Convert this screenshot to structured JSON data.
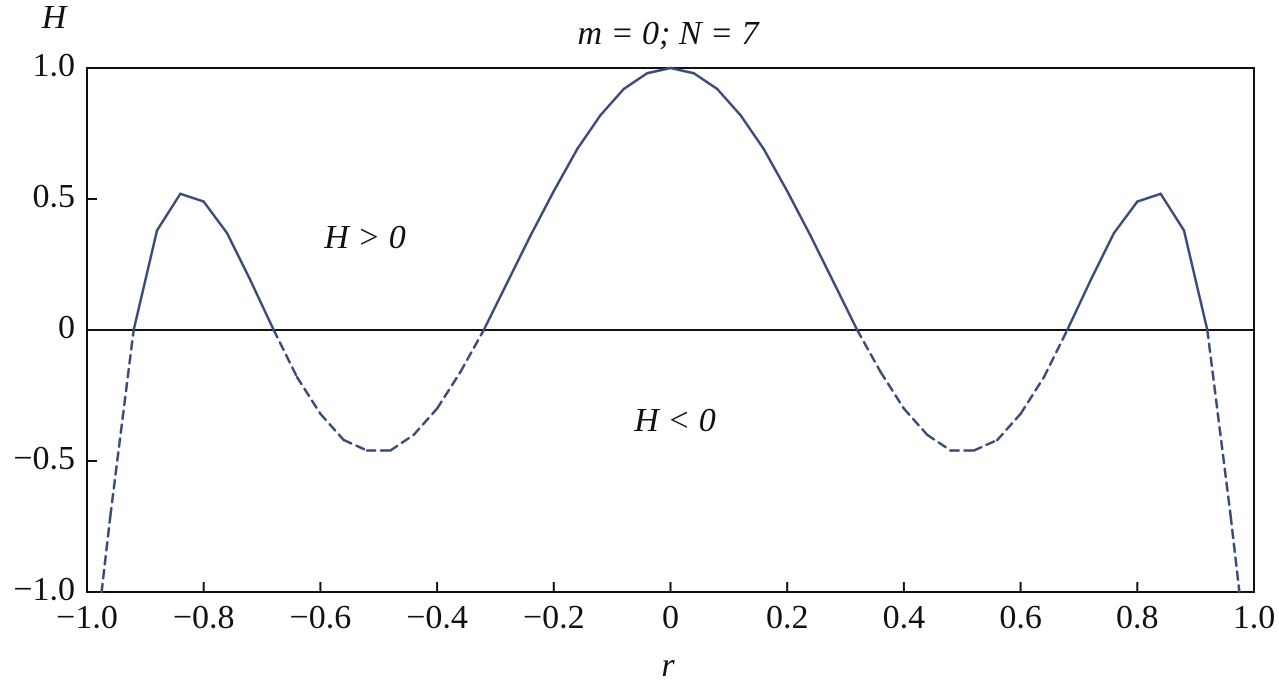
{
  "chart_data": {
    "type": "line",
    "title": "m = 0; N = 7",
    "x_label": "r",
    "y_label": "H",
    "annotations": [
      "H > 0",
      "H < 0"
    ],
    "x": [
      -0.975,
      -0.96,
      -0.92,
      -0.88,
      -0.84,
      -0.8,
      -0.76,
      -0.72,
      -0.68,
      -0.64,
      -0.6,
      -0.56,
      -0.52,
      -0.48,
      -0.44,
      -0.4,
      -0.36,
      -0.32,
      -0.28,
      -0.24,
      -0.2,
      -0.16,
      -0.12,
      -0.08,
      -0.04,
      0,
      0.04,
      0.08,
      0.12,
      0.16,
      0.2,
      0.24,
      0.28,
      0.32,
      0.36,
      0.4,
      0.44,
      0.48,
      0.52,
      0.56,
      0.6,
      0.64,
      0.68,
      0.72,
      0.76,
      0.8,
      0.84,
      0.88,
      0.92,
      0.96,
      0.975
    ],
    "series": [
      {
        "color": "#3a4a7a",
        "values": [
          -1.0,
          -0.71,
          0,
          0.38,
          0.52,
          0.49,
          0.37,
          0.19,
          0,
          -0.18,
          -0.32,
          -0.42,
          -0.46,
          -0.46,
          -0.4,
          -0.3,
          -0.16,
          0,
          0.18,
          0.36,
          0.53,
          0.69,
          0.82,
          0.92,
          0.98,
          1.0,
          0.98,
          0.92,
          0.82,
          0.69,
          0.53,
          0.36,
          0.18,
          0,
          -0.16,
          -0.3,
          -0.4,
          -0.46,
          -0.46,
          -0.42,
          -0.32,
          -0.18,
          0,
          0.19,
          0.37,
          0.49,
          0.52,
          0.38,
          0,
          -0.71,
          -1.0
        ]
      }
    ],
    "xlim": [
      -1,
      1
    ],
    "ylim": [
      -1,
      1
    ],
    "xticks": [
      {
        "value": -1,
        "label": "−1.0"
      },
      {
        "value": -0.8,
        "label": "−0.8"
      },
      {
        "value": -0.6,
        "label": "−0.6"
      },
      {
        "value": -0.4,
        "label": "−0.4"
      },
      {
        "value": -0.2,
        "label": "−0.2"
      },
      0,
      0.2,
      0.4,
      0.6,
      0.8,
      {
        "value": 1,
        "label": "1.0"
      }
    ],
    "yticks": [
      {
        "value": -1,
        "label": "−1.0"
      },
      {
        "value": -0.5,
        "label": "−0.5"
      },
      0,
      0.5,
      {
        "value": 1,
        "label": "1.0"
      }
    ]
  }
}
